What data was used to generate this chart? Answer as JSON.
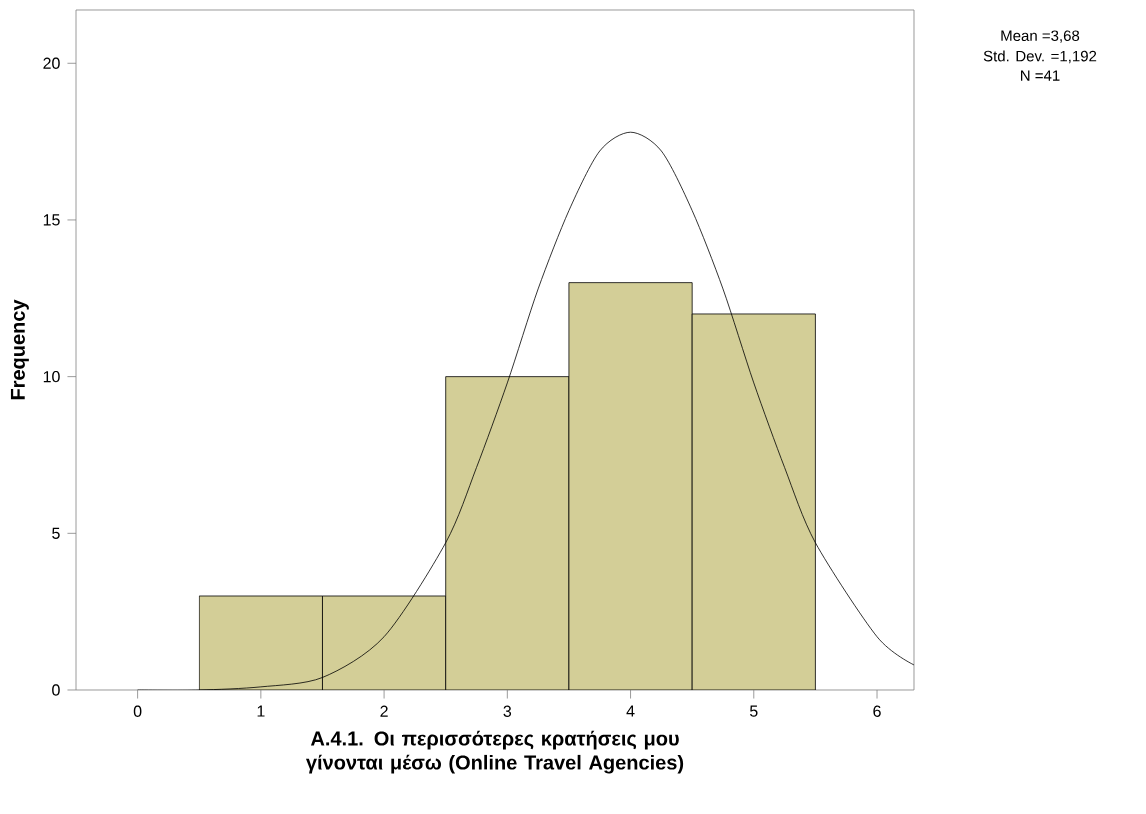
{
  "chart_data": {
    "type": "histogram",
    "xlabel": "A.4.1. Οι περισσότερες κρατήσεις μου γίνονται μέσω (Online Travel Agencies)",
    "ylabel": "Frequency",
    "annotations": [
      "Mean =3,68",
      "Std. Dev. =1,192",
      "N =41"
    ],
    "xlim": [
      -0.5,
      6.3
    ],
    "ylim": [
      0,
      21.7
    ],
    "xticks": [
      0,
      1,
      2,
      3,
      4,
      5,
      6
    ],
    "yticks": [
      0,
      5,
      10,
      15,
      20
    ],
    "grid": false,
    "marker": "none",
    "series": [
      {
        "color": "#d3ce97",
        "bins": [
          0.5,
          1.5,
          2.5,
          3.5,
          4.5,
          5.5
        ],
        "values": [
          3,
          3,
          10,
          13,
          12
        ]
      },
      {
        "type": "line",
        "color": "#000000",
        "line_style": "solid",
        "x": [
          0,
          0.5,
          1,
          1.5,
          2,
          2.5,
          2.75,
          3,
          3.25,
          3.5,
          3.75,
          4,
          4.25,
          4.5,
          4.75,
          5,
          5.25,
          5.5,
          6,
          6.3
        ],
        "values": [
          0,
          0,
          0.1,
          0.4,
          1.7,
          4.7,
          7.1,
          9.8,
          12.8,
          15.3,
          17.2,
          17.8,
          17.2,
          15.3,
          12.8,
          9.8,
          7.1,
          4.7,
          1.7,
          0.8
        ]
      }
    ]
  }
}
